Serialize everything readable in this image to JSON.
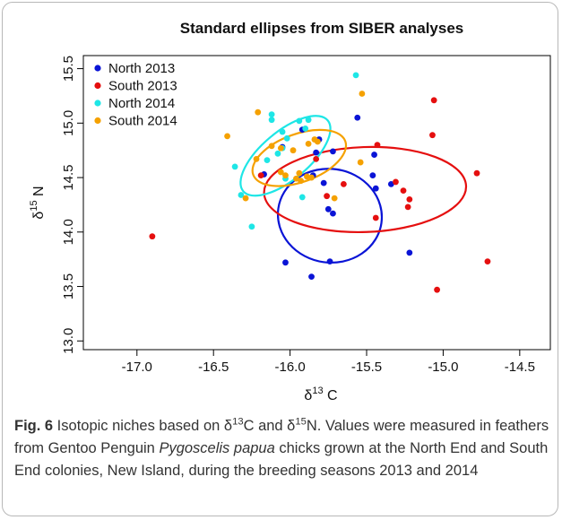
{
  "chart_data": {
    "type": "scatter",
    "title": "Standard ellipses from SIBER analyses",
    "xlabel": {
      "delta": "δ",
      "sup": "13",
      "rest": " C"
    },
    "ylabel": {
      "delta": "δ",
      "sup": "15",
      "rest": " N"
    },
    "xlim": [
      -17.35,
      -14.3
    ],
    "ylim": [
      12.92,
      15.62
    ],
    "xticks": [
      -17.0,
      -16.5,
      -16.0,
      -15.5,
      -15.0,
      -14.5
    ],
    "xtick_labels": [
      "-17.0",
      "-16.5",
      "-16.0",
      "-15.5",
      "-15.0",
      "-14.5"
    ],
    "yticks": [
      13.0,
      13.5,
      14.0,
      14.5,
      15.0,
      15.5
    ],
    "ytick_labels": [
      "13.0",
      "13.5",
      "14.0",
      "14.5",
      "15.0",
      "15.5"
    ],
    "grid": false,
    "legend_position": "top-left",
    "series": [
      {
        "name": "North 2013",
        "color": "#0a14d6",
        "points": [
          [
            -15.56,
            15.05
          ],
          [
            -15.72,
            14.74
          ],
          [
            -15.81,
            14.85
          ],
          [
            -15.83,
            14.73
          ],
          [
            -15.92,
            14.94
          ],
          [
            -16.05,
            14.78
          ],
          [
            -16.17,
            14.53
          ],
          [
            -15.85,
            14.52
          ],
          [
            -15.78,
            14.45
          ],
          [
            -15.45,
            14.71
          ],
          [
            -15.46,
            14.52
          ],
          [
            -15.44,
            14.4
          ],
          [
            -15.34,
            14.44
          ],
          [
            -15.75,
            14.21
          ],
          [
            -15.72,
            14.17
          ],
          [
            -16.03,
            13.72
          ],
          [
            -15.86,
            13.59
          ],
          [
            -15.74,
            13.73
          ],
          [
            -15.22,
            13.81
          ]
        ],
        "ellipse": {
          "cx": -15.74,
          "cy": 14.15,
          "rx": 0.34,
          "ry": 0.43,
          "angle": 8
        }
      },
      {
        "name": "South 2013",
        "color": "#e50f0f",
        "points": [
          [
            -16.9,
            13.96
          ],
          [
            -15.06,
            15.21
          ],
          [
            -15.07,
            14.89
          ],
          [
            -15.43,
            14.8
          ],
          [
            -15.83,
            14.67
          ],
          [
            -15.76,
            14.33
          ],
          [
            -15.65,
            14.44
          ],
          [
            -15.31,
            14.46
          ],
          [
            -15.26,
            14.38
          ],
          [
            -15.22,
            14.3
          ],
          [
            -15.23,
            14.23
          ],
          [
            -15.44,
            14.13
          ],
          [
            -14.78,
            14.54
          ],
          [
            -14.71,
            13.73
          ],
          [
            -15.04,
            13.47
          ],
          [
            -16.19,
            14.52
          ]
        ],
        "ellipse": {
          "cx": -15.51,
          "cy": 14.39,
          "rx": 0.66,
          "ry": 0.39,
          "angle": -2
        }
      },
      {
        "name": "North 2014",
        "color": "#1ee6e6",
        "points": [
          [
            -15.57,
            15.44
          ],
          [
            -16.12,
            15.08
          ],
          [
            -16.12,
            15.03
          ],
          [
            -16.05,
            14.92
          ],
          [
            -15.94,
            15.02
          ],
          [
            -15.88,
            15.03
          ],
          [
            -15.9,
            14.95
          ],
          [
            -16.02,
            14.86
          ],
          [
            -16.08,
            14.72
          ],
          [
            -16.15,
            14.66
          ],
          [
            -16.36,
            14.6
          ],
          [
            -16.32,
            14.34
          ],
          [
            -16.25,
            14.05
          ],
          [
            -15.92,
            14.32
          ],
          [
            -16.03,
            14.49
          ],
          [
            -16.05,
            14.77
          ]
        ],
        "ellipse": {
          "cx": -16.03,
          "cy": 14.7,
          "rx": 0.36,
          "ry": 0.22,
          "angle": -40
        }
      },
      {
        "name": "South 2014",
        "color": "#f5a100",
        "points": [
          [
            -16.21,
            15.1
          ],
          [
            -16.41,
            14.88
          ],
          [
            -16.22,
            14.67
          ],
          [
            -16.29,
            14.31
          ],
          [
            -16.12,
            14.79
          ],
          [
            -16.06,
            14.77
          ],
          [
            -15.98,
            14.75
          ],
          [
            -15.88,
            14.81
          ],
          [
            -15.82,
            14.83
          ],
          [
            -15.94,
            14.54
          ],
          [
            -16.03,
            14.52
          ],
          [
            -15.96,
            14.49
          ],
          [
            -15.89,
            14.51
          ],
          [
            -15.93,
            14.47
          ],
          [
            -15.86,
            14.5
          ],
          [
            -15.71,
            14.31
          ],
          [
            -15.54,
            14.64
          ],
          [
            -15.53,
            15.27
          ],
          [
            -15.84,
            14.85
          ],
          [
            -16.06,
            14.55
          ]
        ],
        "ellipse": {
          "cx": -15.94,
          "cy": 14.68,
          "rx": 0.32,
          "ry": 0.22,
          "angle": -20
        }
      }
    ]
  },
  "caption": {
    "label": "Fig. 6",
    "p1": " Isotopic niches based on δ",
    "sup1": "13",
    "p2": "C and δ",
    "sup2": "15",
    "p3": "N. Values were measured in feathers from Gentoo Penguin ",
    "species": "Pygoscelis papua",
    "p4": " chicks grown at the North End and South End colonies, New Island, during the breeding seasons 2013 and 2014"
  }
}
